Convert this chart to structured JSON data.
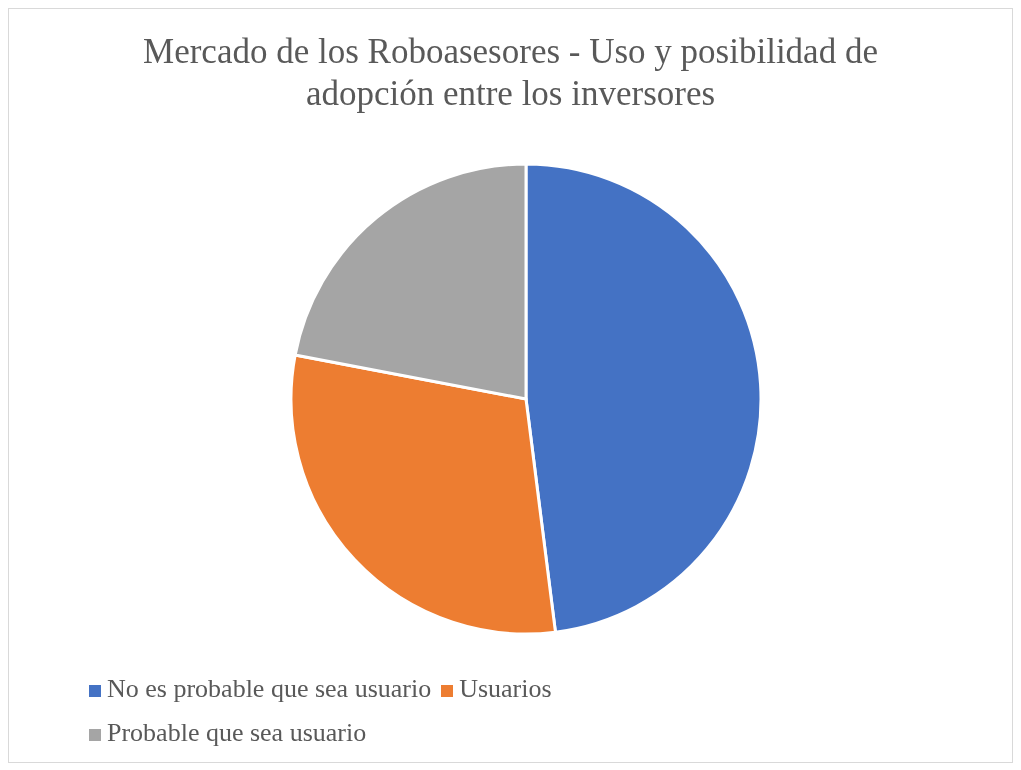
{
  "chart_data": {
    "type": "pie",
    "title": "Mercado de los Roboasesores - Uso y posibilidad de adopción entre los inversores",
    "categories": [
      "No es probable que sea usuario",
      "Usuarios",
      "Probable que sea usuario"
    ],
    "values": [
      48,
      30,
      22
    ],
    "colors": [
      "#4472c4",
      "#ed7d31",
      "#a5a5a5"
    ],
    "legend": "bottom left"
  }
}
